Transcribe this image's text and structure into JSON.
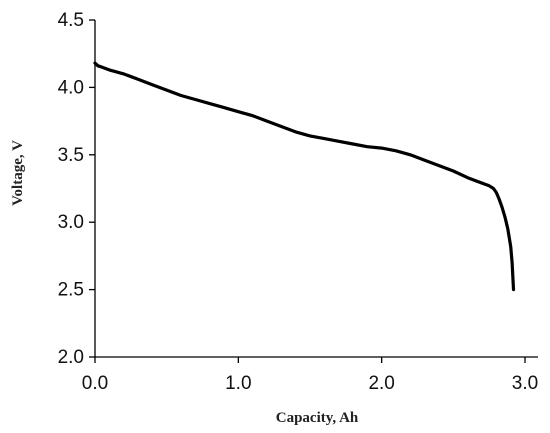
{
  "chart_data": {
    "type": "line",
    "title": "",
    "xlabel": "Capacity, Ah",
    "ylabel": "Voltage, V",
    "xlim": [
      0.0,
      3.0
    ],
    "ylim": [
      2.0,
      4.5
    ],
    "x_ticks": [
      "0.0",
      "1.0",
      "2.0",
      "3.0"
    ],
    "y_ticks": [
      "2.0",
      "2.5",
      "3.0",
      "3.5",
      "4.0",
      "4.5"
    ],
    "grid": false,
    "legend": "none",
    "series": [
      {
        "color": "#000000",
        "x": [
          0.0,
          0.02,
          0.05,
          0.1,
          0.2,
          0.3,
          0.4,
          0.5,
          0.6,
          0.7,
          0.8,
          0.9,
          1.0,
          1.1,
          1.2,
          1.3,
          1.4,
          1.5,
          1.6,
          1.7,
          1.8,
          1.9,
          2.0,
          2.1,
          2.2,
          2.3,
          2.4,
          2.5,
          2.6,
          2.7,
          2.75,
          2.78,
          2.8,
          2.82,
          2.84,
          2.86,
          2.88,
          2.9,
          2.91,
          2.92
        ],
        "y": [
          4.18,
          4.16,
          4.15,
          4.13,
          4.1,
          4.06,
          4.02,
          3.98,
          3.94,
          3.91,
          3.88,
          3.85,
          3.82,
          3.79,
          3.75,
          3.71,
          3.67,
          3.64,
          3.62,
          3.6,
          3.58,
          3.56,
          3.55,
          3.53,
          3.5,
          3.46,
          3.42,
          3.38,
          3.33,
          3.29,
          3.27,
          3.25,
          3.22,
          3.17,
          3.11,
          3.04,
          2.95,
          2.82,
          2.7,
          2.5
        ]
      }
    ]
  }
}
